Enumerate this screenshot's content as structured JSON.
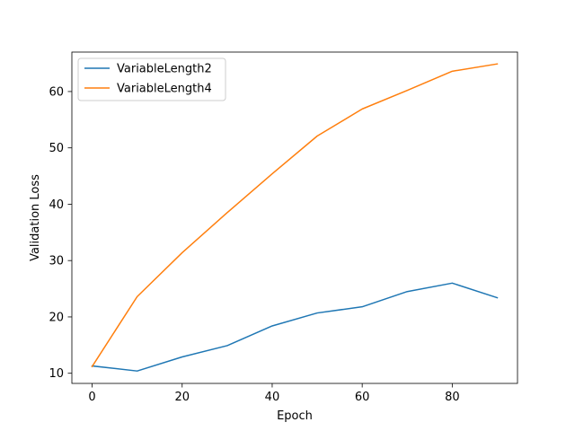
{
  "chart_data": {
    "type": "line",
    "xlabel": "Epoch",
    "ylabel": "Validation Loss",
    "xlim": [
      -4.5,
      94.5
    ],
    "ylim": [
      8.2,
      67.0
    ],
    "xticks": [
      0,
      20,
      40,
      60,
      80
    ],
    "yticks": [
      10,
      20,
      30,
      40,
      50,
      60
    ],
    "grid": false,
    "legend_position": "top-left",
    "x": [
      0,
      10,
      20,
      30,
      40,
      50,
      60,
      70,
      80,
      90
    ],
    "series": [
      {
        "name": "VariableLength2",
        "color": "#1f77b4",
        "values": [
          11.3,
          10.4,
          12.9,
          14.9,
          18.4,
          20.7,
          21.8,
          24.5,
          26.0,
          23.4
        ]
      },
      {
        "name": "VariableLength4",
        "color": "#ff7f0e",
        "values": [
          11.2,
          23.6,
          31.4,
          38.5,
          45.4,
          52.1,
          56.9,
          60.2,
          63.6,
          64.9
        ]
      }
    ]
  }
}
